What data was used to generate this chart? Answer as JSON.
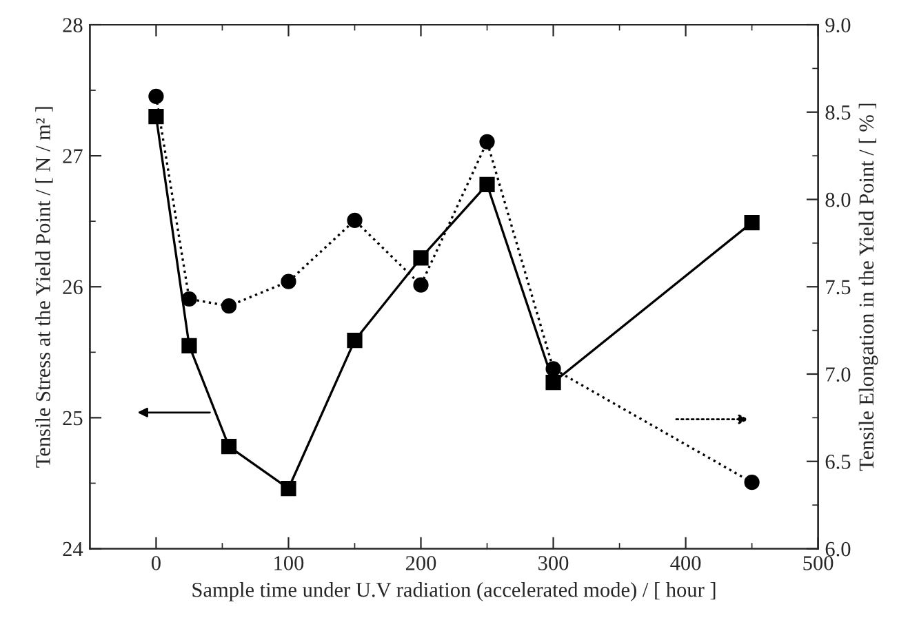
{
  "chart_data": {
    "type": "line",
    "xlabel": "Sample time under U.V radiation (accelerated mode) / [ hour ]",
    "ylabel": "Tensile Stress at the Yield Point / [ N / m² ]",
    "y2label": "Tensile Elongation in the Yield Point / [ % ]",
    "x": [
      0,
      25,
      55,
      100,
      150,
      200,
      250,
      300,
      450
    ],
    "series": [
      {
        "color": "#000000",
        "marker": "square",
        "line_style": "solid",
        "values": [
          27.3,
          25.55,
          24.78,
          24.46,
          25.59,
          26.22,
          26.78,
          25.27,
          26.49
        ]
      },
      {
        "color": "#000000",
        "marker": "circle",
        "line_style": "dotted",
        "axis": "y2",
        "values": [
          8.59,
          7.43,
          7.39,
          7.53,
          7.88,
          7.51,
          8.33,
          7.03,
          6.38
        ]
      }
    ],
    "xlim": [
      -50,
      500
    ],
    "xticks": [
      0,
      100,
      200,
      300,
      400,
      500
    ],
    "ylim": [
      24,
      28
    ],
    "yticks": [
      24,
      25,
      26,
      27,
      28
    ],
    "y2lim": [
      6.0,
      9.0
    ],
    "y2ticks": [
      {
        "value": 6,
        "label": "6.0"
      },
      {
        "value": 6.5,
        "label": "6.5"
      },
      {
        "value": 7,
        "label": "7.0"
      },
      {
        "value": 7.5,
        "label": "7.5"
      },
      {
        "value": 8,
        "label": "8.0"
      },
      {
        "value": 8.5,
        "label": "8.5"
      },
      {
        "value": 9,
        "label": "9.0"
      }
    ],
    "grid": false,
    "legend": false
  }
}
